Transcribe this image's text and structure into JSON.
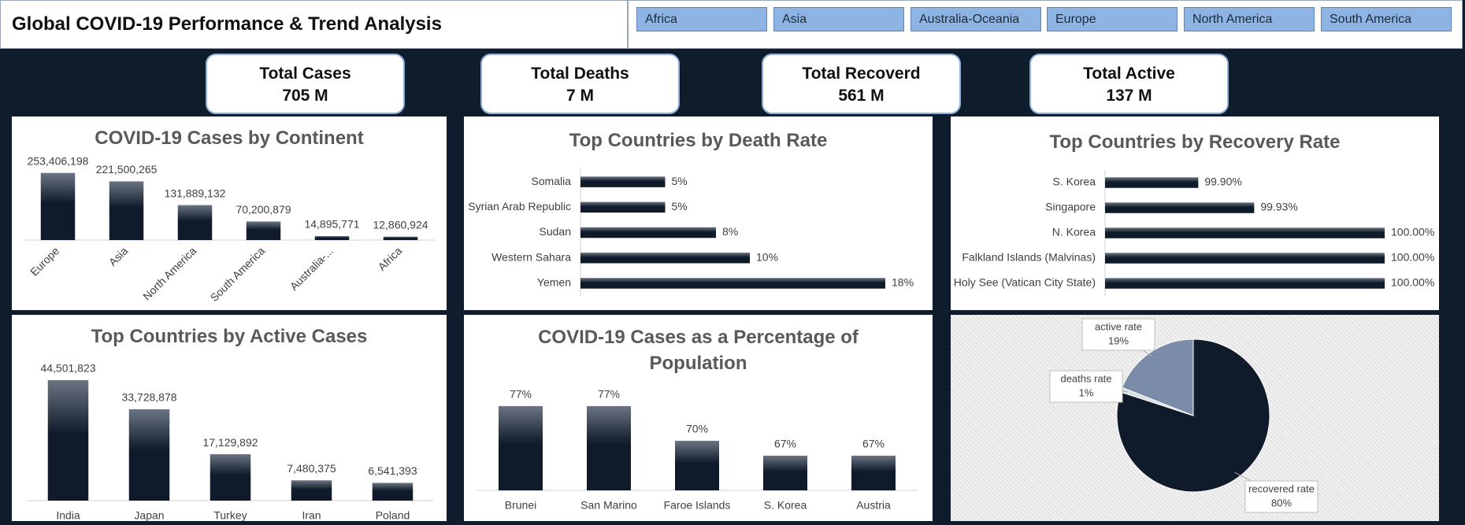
{
  "header": {
    "title": "Global COVID-19 Performance & Trend Analysis"
  },
  "filters": [
    "Africa",
    "Asia",
    "Australia-Oceania",
    "Europe",
    "North America",
    "South America"
  ],
  "kpis": [
    {
      "label": "Total Cases",
      "value": "705 M"
    },
    {
      "label": "Total Deaths",
      "value": "7 M"
    },
    {
      "label": "Total Recoverd",
      "value": "561 M"
    },
    {
      "label": "Total Active",
      "value": "137 M"
    }
  ],
  "chart_data": [
    {
      "type": "bar",
      "title": "COVID-19 Cases by Continent",
      "color": "#0f1b2a",
      "categories": [
        "Europe",
        "Asia",
        "North America",
        "South America",
        "Australia-...",
        "Africa"
      ],
      "values": [
        253406198,
        221500265,
        131889132,
        70200879,
        14895771,
        12860924
      ],
      "value_labels": [
        "253,406,198",
        "221,500,265",
        "131,889,132",
        "70,200,879",
        "14,895,771",
        "12,860,924"
      ],
      "ylim": [
        0,
        300000000
      ]
    },
    {
      "type": "barh",
      "title": "Top Countries by Death Rate",
      "color": "#0f1b2a",
      "categories": [
        "Somalia",
        "Syrian Arab Republic",
        "Sudan",
        "Western Sahara",
        "Yemen"
      ],
      "values": [
        5,
        5,
        8,
        10,
        18
      ],
      "value_labels": [
        "5%",
        "5%",
        "8%",
        "10%",
        "18%"
      ],
      "xlim": [
        0,
        20
      ]
    },
    {
      "type": "barh",
      "title": "Top Countries by Recovery Rate",
      "color": "#0f1b2a",
      "categories": [
        "S. Korea",
        "Singapore",
        "N. Korea",
        "Falkland Islands (Malvinas)",
        "Holy See (Vatican City State)"
      ],
      "values": [
        99.9,
        99.93,
        100,
        100,
        100
      ],
      "value_labels": [
        "99.90%",
        "99.93%",
        "100.00%",
        "100.00%",
        "100.00%"
      ],
      "xlim": [
        99.85,
        100
      ]
    },
    {
      "type": "bar",
      "title": "Top Countries by Active Cases",
      "color": "#0f1b2a",
      "categories": [
        "India",
        "Japan",
        "Turkey",
        "Iran",
        "Poland"
      ],
      "values": [
        44501823,
        33728878,
        17129892,
        7480375,
        6541393
      ],
      "value_labels": [
        "44,501,823",
        "33,728,878",
        "17,129,892",
        "7,480,375",
        "6,541,393"
      ],
      "ylim": [
        0,
        50000000
      ]
    },
    {
      "type": "bar",
      "title": "COVID-19 Cases as a Percentage of Population",
      "color": "#0f1b2a",
      "categories": [
        "Brunei",
        "San Marino",
        "Faroe Islands",
        "S. Korea",
        "Austria"
      ],
      "values": [
        77,
        77,
        70,
        67,
        67
      ],
      "value_labels": [
        "77%",
        "77%",
        "70%",
        "67%",
        "67%"
      ],
      "ylim": [
        60,
        80
      ]
    },
    {
      "type": "pie",
      "categories": [
        "recovered rate",
        "deaths rate",
        "active rate"
      ],
      "values": [
        80,
        1,
        19
      ],
      "value_labels": [
        "80%",
        "1%",
        "19%"
      ],
      "colors": [
        "#0f1b2a",
        "#d9dde3",
        "#7a8ca8"
      ]
    }
  ]
}
